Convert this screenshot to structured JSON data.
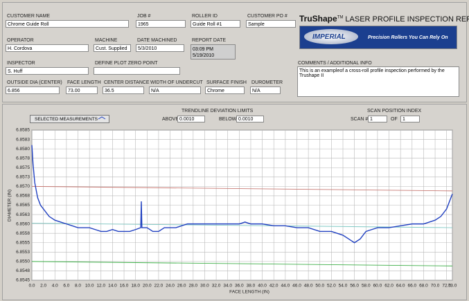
{
  "form": {
    "fields": [
      {
        "label": "CUSTOMER NAME",
        "value": "Chrome Guide Roll"
      },
      {
        "label": "JOB #",
        "value": "1965"
      },
      {
        "label": "ROLLER ID",
        "value": "Guide Roll #1"
      },
      {
        "label": "CUSTOMER PO #",
        "value": "Sample"
      },
      {
        "label": "OPERATOR",
        "value": "H. Cordova"
      },
      {
        "label": "MACHINE",
        "value": "Cust. Supplied"
      },
      {
        "label": "DATE MACHINED",
        "value": "5/3/2010"
      },
      {
        "label": "REPORT DATE",
        "value": [
          "03:09 PM",
          "5/19/2010"
        ]
      },
      {
        "label": "INSPECTOR",
        "value": "S. Huff"
      },
      {
        "label": "DEFINE PLOT ZERO POINT"
      },
      {
        "label": "OUTSIDE DIA (CENTER)",
        "value": "6.856"
      },
      {
        "label": "FACE LENGTH",
        "value": "73.00"
      },
      {
        "label": "CENTER DISTANCE",
        "value": "36.5"
      },
      {
        "label": "WIDTH OF UNDERCUT",
        "value": "N/A"
      },
      {
        "label": "SURFACE FINISH",
        "value": "Chrome"
      },
      {
        "label": "DUROMETER",
        "value": "N/A"
      }
    ]
  },
  "header": {
    "brand": "TruShape",
    "trademark": "TM",
    "title": "LASER PROFILE INSPECTION REPORT",
    "logo": {
      "name": "IMPERIAL",
      "tagline": "Precision Rollers You Can Rely On"
    }
  },
  "comments": {
    "label": "COMMENTS / ADDITIONAL INFO",
    "text": "This is an exampleof a cross-roll profile inspection performed by the Trushape II"
  },
  "controls": {
    "button": "SELECTED MEASUREMENTS",
    "trendline": {
      "title": "TRENDLINE DEVIATION LIMITS",
      "above_label": "ABOVE",
      "above": "0.0010",
      "below_label": "BELOW",
      "below": "0.0010"
    },
    "scan": {
      "title": "SCAN POSITION INDEX",
      "scan_label": "SCAN #",
      "scan": "1",
      "of_label": "OF",
      "of": "1"
    }
  },
  "chart_data": {
    "type": "line",
    "x_label": "FACE LENGTH (IN)",
    "y_label": "DIAMETER (IN)",
    "xlim": [
      0,
      73
    ],
    "ylim": [
      6.8545,
      6.8585
    ],
    "grid": true,
    "xticks": [
      {
        "value": 0,
        "label": "0.0"
      },
      {
        "value": 2,
        "label": "2.0"
      },
      {
        "value": 4,
        "label": "4.0"
      },
      {
        "value": 6,
        "label": "6.0"
      },
      {
        "value": 8,
        "label": "8.0"
      },
      {
        "value": 10,
        "label": "10.0"
      },
      {
        "value": 12,
        "label": "12.0"
      },
      {
        "value": 14,
        "label": "14.0"
      },
      {
        "value": 16,
        "label": "16.0"
      },
      {
        "value": 18,
        "label": "18.0"
      },
      {
        "value": 20,
        "label": "20.0"
      },
      {
        "value": 22,
        "label": "22.0"
      },
      {
        "value": 24,
        "label": "24.0"
      },
      {
        "value": 26,
        "label": "26.0"
      },
      {
        "value": 28,
        "label": "28.0"
      },
      {
        "value": 30,
        "label": "30.0"
      },
      {
        "value": 32,
        "label": "32.0"
      },
      {
        "value": 34,
        "label": "34.0"
      },
      {
        "value": 36,
        "label": "36.0"
      },
      {
        "value": 38,
        "label": "38.0"
      },
      {
        "value": 40,
        "label": "40.0"
      },
      {
        "value": 42,
        "label": "42.0"
      },
      {
        "value": 44,
        "label": "44.0"
      },
      {
        "value": 46,
        "label": "46.0"
      },
      {
        "value": 48,
        "label": "48.0"
      },
      {
        "value": 50,
        "label": "50.0"
      },
      {
        "value": 52,
        "label": "52.0"
      },
      {
        "value": 54,
        "label": "54.0"
      },
      {
        "value": 56,
        "label": "56.0"
      },
      {
        "value": 58,
        "label": "58.0"
      },
      {
        "value": 60,
        "label": "60.0"
      },
      {
        "value": 62,
        "label": "62.0"
      },
      {
        "value": 64,
        "label": "64.0"
      },
      {
        "value": 66,
        "label": "66.0"
      },
      {
        "value": 68,
        "label": "68.0"
      },
      {
        "value": 70,
        "label": "70.0"
      },
      {
        "value": 72,
        "label": "72.0"
      },
      {
        "value": 73,
        "label": "73.0"
      }
    ],
    "yticks": [
      6.8545,
      {
        "value": 6.85475,
        "label": "6.8548"
      },
      {
        "value": 6.855,
        "label": "6.8550"
      },
      {
        "value": 6.85525,
        "label": "6.8553"
      },
      6.8555,
      {
        "value": 6.85575,
        "label": "6.8558"
      },
      {
        "value": 6.856,
        "label": "6.8560"
      },
      {
        "value": 6.85625,
        "label": "6.8563"
      },
      6.8565,
      {
        "value": 6.85675,
        "label": "6.8568"
      },
      {
        "value": 6.857,
        "label": "6.8570"
      },
      {
        "value": 6.85725,
        "label": "6.8573"
      },
      6.8575,
      {
        "value": 6.85775,
        "label": "6.8578"
      },
      {
        "value": 6.858,
        "label": "6.8580"
      },
      {
        "value": 6.85825,
        "label": "6.8583"
      },
      6.8585
    ],
    "series": [
      {
        "color": "#c87a74",
        "x": [
          0,
          73
        ],
        "values": [
          6.857,
          6.85688
        ]
      },
      {
        "color": "#7fc9c4",
        "x": [
          0,
          73
        ],
        "values": [
          6.85602,
          6.8559
        ]
      },
      {
        "color": "#3cae46",
        "x": [
          0,
          73
        ],
        "values": [
          6.855,
          6.85488
        ]
      },
      {
        "color": "#1f3fc0",
        "x": [
          0,
          0.2,
          0.5,
          1,
          1.5,
          2,
          3,
          4,
          5,
          6,
          7,
          8,
          9,
          10,
          11,
          12,
          13,
          14,
          15,
          16,
          17,
          18,
          18.9,
          19,
          19.1,
          20,
          21,
          22,
          23,
          24,
          25,
          26,
          27,
          28,
          30,
          32,
          34,
          36,
          37,
          38,
          40,
          42,
          44,
          46,
          48,
          50,
          52,
          53,
          54,
          55,
          56,
          57,
          58,
          59,
          60,
          62,
          64,
          66,
          68,
          70,
          71,
          72,
          73
        ],
        "values": [
          6.8581,
          6.8576,
          6.8571,
          6.8567,
          6.8565,
          6.8564,
          6.8562,
          6.8561,
          6.85605,
          6.856,
          6.85595,
          6.8559,
          6.8559,
          6.8559,
          6.85585,
          6.8558,
          6.8558,
          6.85585,
          6.8558,
          6.8558,
          6.8558,
          6.85585,
          6.8559,
          6.8566,
          6.8559,
          6.8559,
          6.8558,
          6.8558,
          6.8559,
          6.8559,
          6.8559,
          6.85595,
          6.856,
          6.856,
          6.856,
          6.856,
          6.856,
          6.856,
          6.85605,
          6.856,
          6.856,
          6.85595,
          6.85595,
          6.8559,
          6.8559,
          6.8558,
          6.8558,
          6.85575,
          6.8557,
          6.8556,
          6.8555,
          6.8556,
          6.8558,
          6.85585,
          6.8559,
          6.8559,
          6.85595,
          6.856,
          6.856,
          6.8561,
          6.8562,
          6.8564,
          6.8568
        ]
      }
    ]
  }
}
